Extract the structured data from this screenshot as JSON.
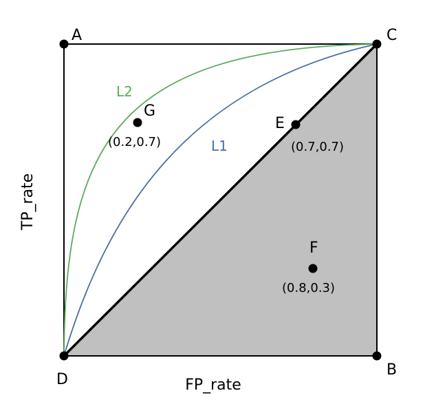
{
  "diagram": {
    "axes": {
      "x_label": "FP_rate",
      "y_label": "TP_rate"
    },
    "corners": {
      "A": {
        "label": "A",
        "fp": 0,
        "tp": 1
      },
      "B": {
        "label": "B",
        "fp": 1,
        "tp": 0
      },
      "C": {
        "label": "C",
        "fp": 1,
        "tp": 1
      },
      "D": {
        "label": "D",
        "fp": 0,
        "tp": 0
      }
    },
    "points": {
      "E": {
        "label": "E",
        "coord_text": "(0.7,0.7)",
        "fp": 0.7,
        "tp": 0.7
      },
      "F": {
        "label": "F",
        "coord_text": "(0.8,0.3)",
        "fp": 0.8,
        "tp": 0.3
      },
      "G": {
        "label": "G",
        "coord_text": "(0.2,0.7)",
        "fp": 0.2,
        "tp": 0.7
      }
    },
    "curves": {
      "L1": {
        "label": "L1",
        "color": "#4a6f9e"
      },
      "L2": {
        "label": "L2",
        "color": "#5aab5a"
      }
    },
    "shaded_region_color": "#c0c0c0",
    "frame_color": "#000000"
  }
}
